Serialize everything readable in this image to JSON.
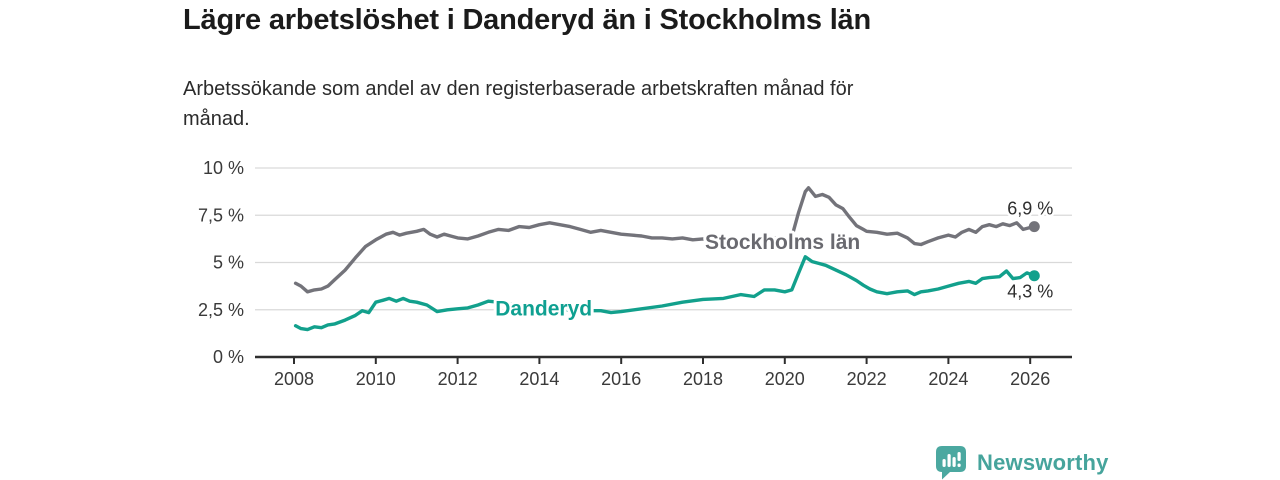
{
  "header": {
    "title": "Lägre arbetslöshet i Danderyd än i Stockholms län",
    "subtitle_lines": [
      "Arbetssökande som andel av den registerbaserade arbetskraften månad för",
      "månad."
    ]
  },
  "footer": {
    "brand": "Newsworthy",
    "logo_icon": "bar-chart-speech-bubble-icon",
    "brand_color": "#46a49c"
  },
  "chart_data": {
    "type": "line",
    "title": "Lägre arbetslöshet i Danderyd än i Stockholms län",
    "xlabel": "",
    "ylabel": "",
    "x_range": [
      2008,
      2026.2
    ],
    "ylim": [
      0,
      10
    ],
    "grid": "horizontal",
    "legend_position": "inline-labels-on-lines",
    "colors": {
      "grid": "#d9d9d9",
      "axis": "#2e2e2e",
      "tick_text": "#3a3a3a"
    },
    "y_ticks": [
      {
        "value": 0,
        "label": "0 %"
      },
      {
        "value": 2.5,
        "label": "2,5 %"
      },
      {
        "value": 5,
        "label": "5 %"
      },
      {
        "value": 7.5,
        "label": "7,5 %"
      },
      {
        "value": 10,
        "label": "10 %"
      }
    ],
    "x_ticks": [
      {
        "value": 2008,
        "label": "2008"
      },
      {
        "value": 2010,
        "label": "2010"
      },
      {
        "value": 2012,
        "label": "2012"
      },
      {
        "value": 2014,
        "label": "2014"
      },
      {
        "value": 2016,
        "label": "2016"
      },
      {
        "value": 2018,
        "label": "2018"
      },
      {
        "value": 2020,
        "label": "2020"
      },
      {
        "value": 2022,
        "label": "2022"
      },
      {
        "value": 2024,
        "label": "2024"
      },
      {
        "value": 2026,
        "label": "2026"
      }
    ],
    "series": [
      {
        "name": "Stockholms län",
        "color": "#73737a",
        "label_color": "#6a6a70",
        "end_label": "6,9 %",
        "end_label_position": "above",
        "end_dot": true,
        "label_anchor": {
          "year": 2018.05,
          "pct": 5.72
        },
        "points": [
          [
            2008.04,
            3.9
          ],
          [
            2008.17,
            3.75
          ],
          [
            2008.33,
            3.45
          ],
          [
            2008.5,
            3.55
          ],
          [
            2008.67,
            3.6
          ],
          [
            2008.83,
            3.75
          ],
          [
            2009.0,
            4.1
          ],
          [
            2009.25,
            4.6
          ],
          [
            2009.5,
            5.25
          ],
          [
            2009.75,
            5.85
          ],
          [
            2010.0,
            6.2
          ],
          [
            2010.25,
            6.5
          ],
          [
            2010.42,
            6.6
          ],
          [
            2010.58,
            6.45
          ],
          [
            2010.75,
            6.55
          ],
          [
            2011.0,
            6.65
          ],
          [
            2011.17,
            6.75
          ],
          [
            2011.33,
            6.5
          ],
          [
            2011.5,
            6.35
          ],
          [
            2011.67,
            6.5
          ],
          [
            2011.83,
            6.4
          ],
          [
            2012.0,
            6.3
          ],
          [
            2012.25,
            6.25
          ],
          [
            2012.5,
            6.4
          ],
          [
            2012.75,
            6.6
          ],
          [
            2013.0,
            6.75
          ],
          [
            2013.25,
            6.7
          ],
          [
            2013.5,
            6.9
          ],
          [
            2013.75,
            6.85
          ],
          [
            2014.0,
            7.0
          ],
          [
            2014.25,
            7.1
          ],
          [
            2014.5,
            7.0
          ],
          [
            2014.75,
            6.9
          ],
          [
            2015.0,
            6.75
          ],
          [
            2015.25,
            6.6
          ],
          [
            2015.5,
            6.7
          ],
          [
            2015.75,
            6.6
          ],
          [
            2016.0,
            6.5
          ],
          [
            2016.25,
            6.45
          ],
          [
            2016.5,
            6.4
          ],
          [
            2016.75,
            6.3
          ],
          [
            2017.0,
            6.3
          ],
          [
            2017.25,
            6.25
          ],
          [
            2017.5,
            6.3
          ],
          [
            2017.75,
            6.2
          ],
          [
            2018.0,
            6.25
          ],
          [
            2018.25,
            6.15
          ],
          [
            2018.5,
            6.2
          ],
          [
            2018.75,
            6.15
          ],
          [
            2019.0,
            6.2
          ],
          [
            2019.25,
            6.25
          ],
          [
            2019.5,
            6.35
          ],
          [
            2019.75,
            6.3
          ],
          [
            2020.0,
            6.2
          ],
          [
            2020.17,
            6.35
          ],
          [
            2020.33,
            7.6
          ],
          [
            2020.5,
            8.75
          ],
          [
            2020.58,
            8.95
          ],
          [
            2020.75,
            8.5
          ],
          [
            2020.92,
            8.6
          ],
          [
            2021.08,
            8.45
          ],
          [
            2021.25,
            8.05
          ],
          [
            2021.42,
            7.85
          ],
          [
            2021.58,
            7.4
          ],
          [
            2021.75,
            6.95
          ],
          [
            2021.92,
            6.75
          ],
          [
            2022.0,
            6.65
          ],
          [
            2022.25,
            6.6
          ],
          [
            2022.5,
            6.5
          ],
          [
            2022.75,
            6.55
          ],
          [
            2023.0,
            6.3
          ],
          [
            2023.17,
            6.0
          ],
          [
            2023.33,
            5.95
          ],
          [
            2023.5,
            6.1
          ],
          [
            2023.75,
            6.3
          ],
          [
            2024.0,
            6.45
          ],
          [
            2024.17,
            6.35
          ],
          [
            2024.33,
            6.6
          ],
          [
            2024.5,
            6.75
          ],
          [
            2024.67,
            6.6
          ],
          [
            2024.83,
            6.9
          ],
          [
            2025.0,
            7.0
          ],
          [
            2025.17,
            6.9
          ],
          [
            2025.33,
            7.05
          ],
          [
            2025.5,
            6.95
          ],
          [
            2025.67,
            7.1
          ],
          [
            2025.83,
            6.75
          ],
          [
            2026.0,
            6.85
          ],
          [
            2026.1,
            6.9
          ]
        ]
      },
      {
        "name": "Danderyd",
        "color": "#12a08c",
        "label_color": "#0fa091",
        "end_label": "4,3 %",
        "end_label_position": "below",
        "end_dot": true,
        "label_anchor": {
          "year": 2012.92,
          "pct": 2.2
        },
        "points": [
          [
            2008.04,
            1.65
          ],
          [
            2008.17,
            1.5
          ],
          [
            2008.33,
            1.45
          ],
          [
            2008.5,
            1.6
          ],
          [
            2008.67,
            1.55
          ],
          [
            2008.83,
            1.7
          ],
          [
            2009.0,
            1.75
          ],
          [
            2009.25,
            1.95
          ],
          [
            2009.5,
            2.2
          ],
          [
            2009.67,
            2.45
          ],
          [
            2009.83,
            2.35
          ],
          [
            2010.0,
            2.9
          ],
          [
            2010.17,
            3.0
          ],
          [
            2010.33,
            3.1
          ],
          [
            2010.5,
            2.95
          ],
          [
            2010.67,
            3.1
          ],
          [
            2010.83,
            2.95
          ],
          [
            2011.0,
            2.9
          ],
          [
            2011.25,
            2.75
          ],
          [
            2011.5,
            2.4
          ],
          [
            2011.75,
            2.5
          ],
          [
            2012.0,
            2.55
          ],
          [
            2012.25,
            2.6
          ],
          [
            2012.5,
            2.75
          ],
          [
            2012.75,
            2.95
          ],
          [
            2013.0,
            2.9
          ],
          [
            2013.5,
            2.75
          ],
          [
            2014.0,
            2.6
          ],
          [
            2014.5,
            2.5
          ],
          [
            2015.0,
            2.45
          ],
          [
            2015.5,
            2.45
          ],
          [
            2015.75,
            2.35
          ],
          [
            2016.0,
            2.4
          ],
          [
            2016.5,
            2.55
          ],
          [
            2017.0,
            2.7
          ],
          [
            2017.5,
            2.9
          ],
          [
            2018.0,
            3.05
          ],
          [
            2018.5,
            3.1
          ],
          [
            2018.92,
            3.3
          ],
          [
            2019.25,
            3.2
          ],
          [
            2019.5,
            3.55
          ],
          [
            2019.75,
            3.55
          ],
          [
            2020.0,
            3.45
          ],
          [
            2020.17,
            3.55
          ],
          [
            2020.33,
            4.4
          ],
          [
            2020.5,
            5.3
          ],
          [
            2020.67,
            5.05
          ],
          [
            2020.83,
            4.95
          ],
          [
            2021.0,
            4.85
          ],
          [
            2021.25,
            4.6
          ],
          [
            2021.5,
            4.35
          ],
          [
            2021.75,
            4.05
          ],
          [
            2021.92,
            3.8
          ],
          [
            2022.08,
            3.6
          ],
          [
            2022.25,
            3.45
          ],
          [
            2022.5,
            3.35
          ],
          [
            2022.75,
            3.45
          ],
          [
            2023.0,
            3.5
          ],
          [
            2023.17,
            3.3
          ],
          [
            2023.33,
            3.45
          ],
          [
            2023.5,
            3.5
          ],
          [
            2023.75,
            3.6
          ],
          [
            2024.0,
            3.75
          ],
          [
            2024.25,
            3.9
          ],
          [
            2024.5,
            4.0
          ],
          [
            2024.67,
            3.9
          ],
          [
            2024.83,
            4.15
          ],
          [
            2025.0,
            4.2
          ],
          [
            2025.25,
            4.25
          ],
          [
            2025.42,
            4.55
          ],
          [
            2025.58,
            4.15
          ],
          [
            2025.75,
            4.2
          ],
          [
            2025.92,
            4.45
          ],
          [
            2026.1,
            4.3
          ]
        ]
      }
    ]
  }
}
